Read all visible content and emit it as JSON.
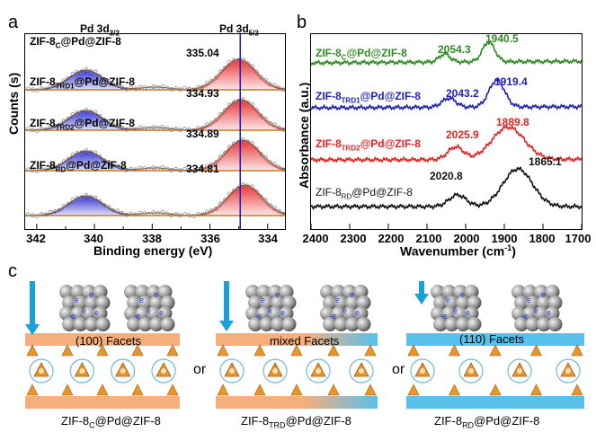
{
  "panel_a": {
    "letter": "a",
    "xlabel": "Binding energy (eV)",
    "ylabel": "Counts (s)",
    "xticks": [
      "342",
      "340",
      "338",
      "336",
      "334"
    ],
    "peak_label_left": "Pd 3d",
    "peak_label_left_sub": "3/2",
    "peak_label_right": "Pd 3d",
    "peak_label_right_sub": "5/2",
    "curves": [
      {
        "name_main": "ZIF-8",
        "name_sub": "C",
        "name_rest": "@Pd@ZIF-8",
        "value": "335.04"
      },
      {
        "name_main": "ZIF-8",
        "name_sub": "TRD1",
        "name_rest": "@Pd@ZIF-8",
        "value": "334.93"
      },
      {
        "name_main": "ZIF-8",
        "name_sub": "TRD2",
        "name_rest": "@Pd@ZIF-8",
        "value": "334.89"
      },
      {
        "name_main": "ZIF-8",
        "name_sub": "RD",
        "name_rest": "@Pd@ZIF-8",
        "value": "334.81"
      }
    ]
  },
  "panel_b": {
    "letter": "b",
    "xlabel": "Wavenumber (cm",
    "xlabel_sup": "-1",
    "xlabel_end": ")",
    "ylabel": "Absorbance (a.u.)",
    "xticks": [
      "2400",
      "2300",
      "2200",
      "2100",
      "2000",
      "1900",
      "1800",
      "1700"
    ],
    "spectra": [
      {
        "name_main": "ZIF-8",
        "name_sub": "C",
        "name_rest": "@Pd@ZIF-8",
        "peak1": "2054.3",
        "peak2": "1940.5",
        "color": "#2e8b22"
      },
      {
        "name_main": "ZIF-8",
        "name_sub": "TRD1",
        "name_rest": "@Pd@ZIF-8",
        "peak1": "2043.2",
        "peak2": "1919.4",
        "color": "#1f1fb4"
      },
      {
        "name_main": "ZIF-8",
        "name_sub": "TRD2",
        "name_rest": "@Pd@ZIF-8",
        "peak1": "2025.9",
        "peak2": "1889.8",
        "color": "#e32222"
      },
      {
        "name_main": "ZIF-8",
        "name_sub": "RD",
        "name_rest": "@Pd@ZIF-8",
        "peak1": "2020.8",
        "peak2": "1865.1",
        "color": "#111111"
      }
    ]
  },
  "panel_c": {
    "letter": "c",
    "electron_label": "e",
    "or_label": "or",
    "scenes": [
      {
        "facet_label": "(100) Facets",
        "cap_main": "ZIF-8",
        "cap_sub": "C",
        "cap_rest": "@Pd@ZIF-8"
      },
      {
        "facet_label": "mixed Facets",
        "cap_main": "ZIF-8",
        "cap_sub": "TRD",
        "cap_rest": "@Pd@ZIF-8"
      },
      {
        "facet_label": "(110) Facets",
        "cap_main": "ZIF-8",
        "cap_sub": "RD",
        "cap_rest": "@Pd@ZIF-8"
      }
    ]
  },
  "colors": {
    "blue_peak": "#2a2ad0",
    "red_peak": "#e52a2a",
    "orange_bar": "#f4a064",
    "cyan_bar": "#38b6e8",
    "arrow": "#1aa0dc"
  }
}
